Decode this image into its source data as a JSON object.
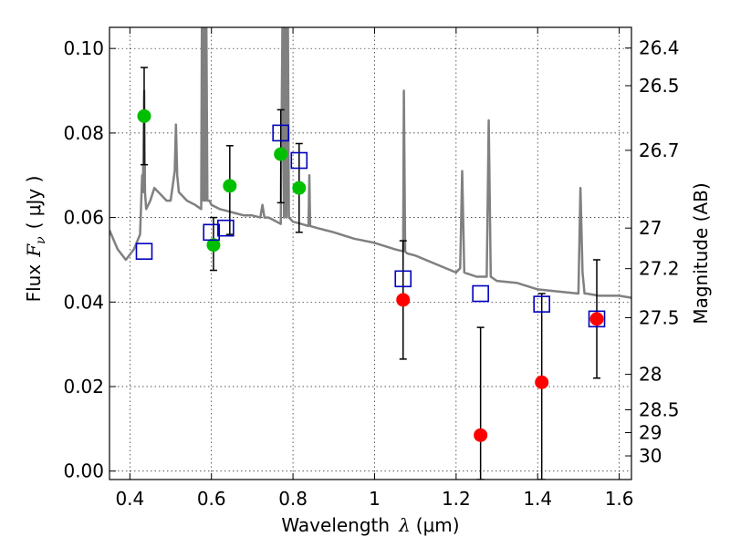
{
  "chart_data": {
    "type": "scatter",
    "xlabel": "Wavelength",
    "xlabel_symbol": "λ",
    "xlabel_unit": "(μm)",
    "ylabel": "Flux",
    "ylabel_symbol": "F",
    "ylabel_subscript": "ν",
    "ylabel_unit": "( μJy )",
    "y2label": "Magnitude (AB)",
    "xlim": [
      0.35,
      1.63
    ],
    "ylim": [
      -0.002,
      0.105
    ],
    "grid": true,
    "x_ticks": [
      0.4,
      0.6,
      0.8,
      1.0,
      1.2,
      1.4,
      1.6
    ],
    "x_tick_labels": [
      "0.4",
      "0.6",
      "0.8",
      "1",
      "1.2",
      "1.4",
      "1.6"
    ],
    "y_ticks": [
      0.0,
      0.02,
      0.04,
      0.06,
      0.08,
      0.1
    ],
    "y_tick_labels": [
      "0.00",
      "0.02",
      "0.04",
      "0.06",
      "0.08",
      "0.10"
    ],
    "y2_ticks": [
      {
        "label": "26.4",
        "flux": 0.1001
      },
      {
        "label": "26.5",
        "flux": 0.0912
      },
      {
        "label": "26.7",
        "flux": 0.0759
      },
      {
        "label": "27",
        "flux": 0.0575
      },
      {
        "label": "27.2",
        "flux": 0.0479
      },
      {
        "label": "27.5",
        "flux": 0.0363
      },
      {
        "label": "28",
        "flux": 0.0229
      },
      {
        "label": "28.5",
        "flux": 0.0145
      },
      {
        "label": "29",
        "flux": 0.0091
      },
      {
        "label": "30",
        "flux": 0.0036
      }
    ],
    "colors": {
      "model": "#808080",
      "green": "#00bf00",
      "red": "#ff0000",
      "square": "#0000bf",
      "errorbar": "#000000"
    },
    "series": [
      {
        "style": "model-spectrum-line",
        "x": [
          0.35,
          0.37,
          0.39,
          0.41,
          0.425,
          0.43,
          0.432,
          0.435,
          0.437,
          0.44,
          0.45,
          0.46,
          0.47,
          0.48,
          0.49,
          0.5,
          0.51,
          0.513,
          0.516,
          0.52,
          0.54,
          0.56,
          0.575,
          0.577,
          0.58,
          0.583,
          0.585,
          0.587,
          0.59,
          0.592,
          0.595,
          0.6,
          0.62,
          0.64,
          0.66,
          0.68,
          0.7,
          0.72,
          0.725,
          0.73,
          0.74,
          0.75,
          0.76,
          0.77,
          0.775,
          0.778,
          0.781,
          0.784,
          0.787,
          0.79,
          0.8,
          0.82,
          0.838,
          0.84,
          0.842,
          0.86,
          0.88,
          0.9,
          0.95,
          1.0,
          1.05,
          1.07,
          1.072,
          1.075,
          1.08,
          1.1,
          1.15,
          1.2,
          1.21,
          1.215,
          1.22,
          1.25,
          1.275,
          1.28,
          1.285,
          1.3,
          1.35,
          1.4,
          1.45,
          1.5,
          1.505,
          1.51,
          1.515,
          1.52,
          1.55,
          1.6,
          1.63
        ],
        "y": [
          0.057,
          0.0525,
          0.05,
          0.0525,
          0.056,
          0.07,
          0.066,
          0.09,
          0.066,
          0.062,
          0.064,
          0.067,
          0.066,
          0.065,
          0.064,
          0.064,
          0.071,
          0.082,
          0.07,
          0.066,
          0.064,
          0.063,
          0.062,
          0.115,
          0.064,
          0.115,
          0.064,
          0.115,
          0.064,
          0.064,
          0.064,
          0.063,
          0.062,
          0.0615,
          0.061,
          0.0605,
          0.0605,
          0.06,
          0.063,
          0.06,
          0.06,
          0.0595,
          0.059,
          0.0585,
          0.115,
          0.06,
          0.115,
          0.06,
          0.115,
          0.06,
          0.059,
          0.0585,
          0.058,
          0.07,
          0.058,
          0.0575,
          0.057,
          0.0565,
          0.055,
          0.054,
          0.0525,
          0.052,
          0.09,
          0.052,
          0.0515,
          0.051,
          0.049,
          0.047,
          0.048,
          0.071,
          0.047,
          0.046,
          0.046,
          0.083,
          0.046,
          0.045,
          0.0445,
          0.043,
          0.0425,
          0.042,
          0.067,
          0.047,
          0.042,
          0.042,
          0.0415,
          0.0415,
          0.041
        ]
      },
      {
        "style": "green-circles-with-errorbars",
        "x": [
          0.435,
          0.605,
          0.645,
          0.77,
          0.815
        ],
        "y": [
          0.084,
          0.0535,
          0.0675,
          0.075,
          0.067
        ],
        "yerr_low": [
          0.0725,
          0.0475,
          0.056,
          0.0635,
          0.0565
        ],
        "yerr_high": [
          0.0955,
          0.06,
          0.077,
          0.0855,
          0.0775
        ]
      },
      {
        "style": "red-circles-with-errorbars",
        "x": [
          1.07,
          1.26,
          1.41,
          1.545
        ],
        "y": [
          0.0405,
          0.0085,
          0.021,
          0.036
        ],
        "yerr_low": [
          0.0265,
          -0.002,
          -0.002,
          0.022
        ],
        "yerr_high": [
          0.0545,
          0.034,
          0.042,
          0.05
        ]
      },
      {
        "style": "blue-open-squares",
        "x": [
          0.435,
          0.6,
          0.635,
          0.77,
          0.815,
          1.07,
          1.26,
          1.41,
          1.545
        ],
        "y": [
          0.052,
          0.0565,
          0.0575,
          0.08,
          0.0735,
          0.0455,
          0.042,
          0.0395,
          0.036
        ]
      }
    ]
  }
}
